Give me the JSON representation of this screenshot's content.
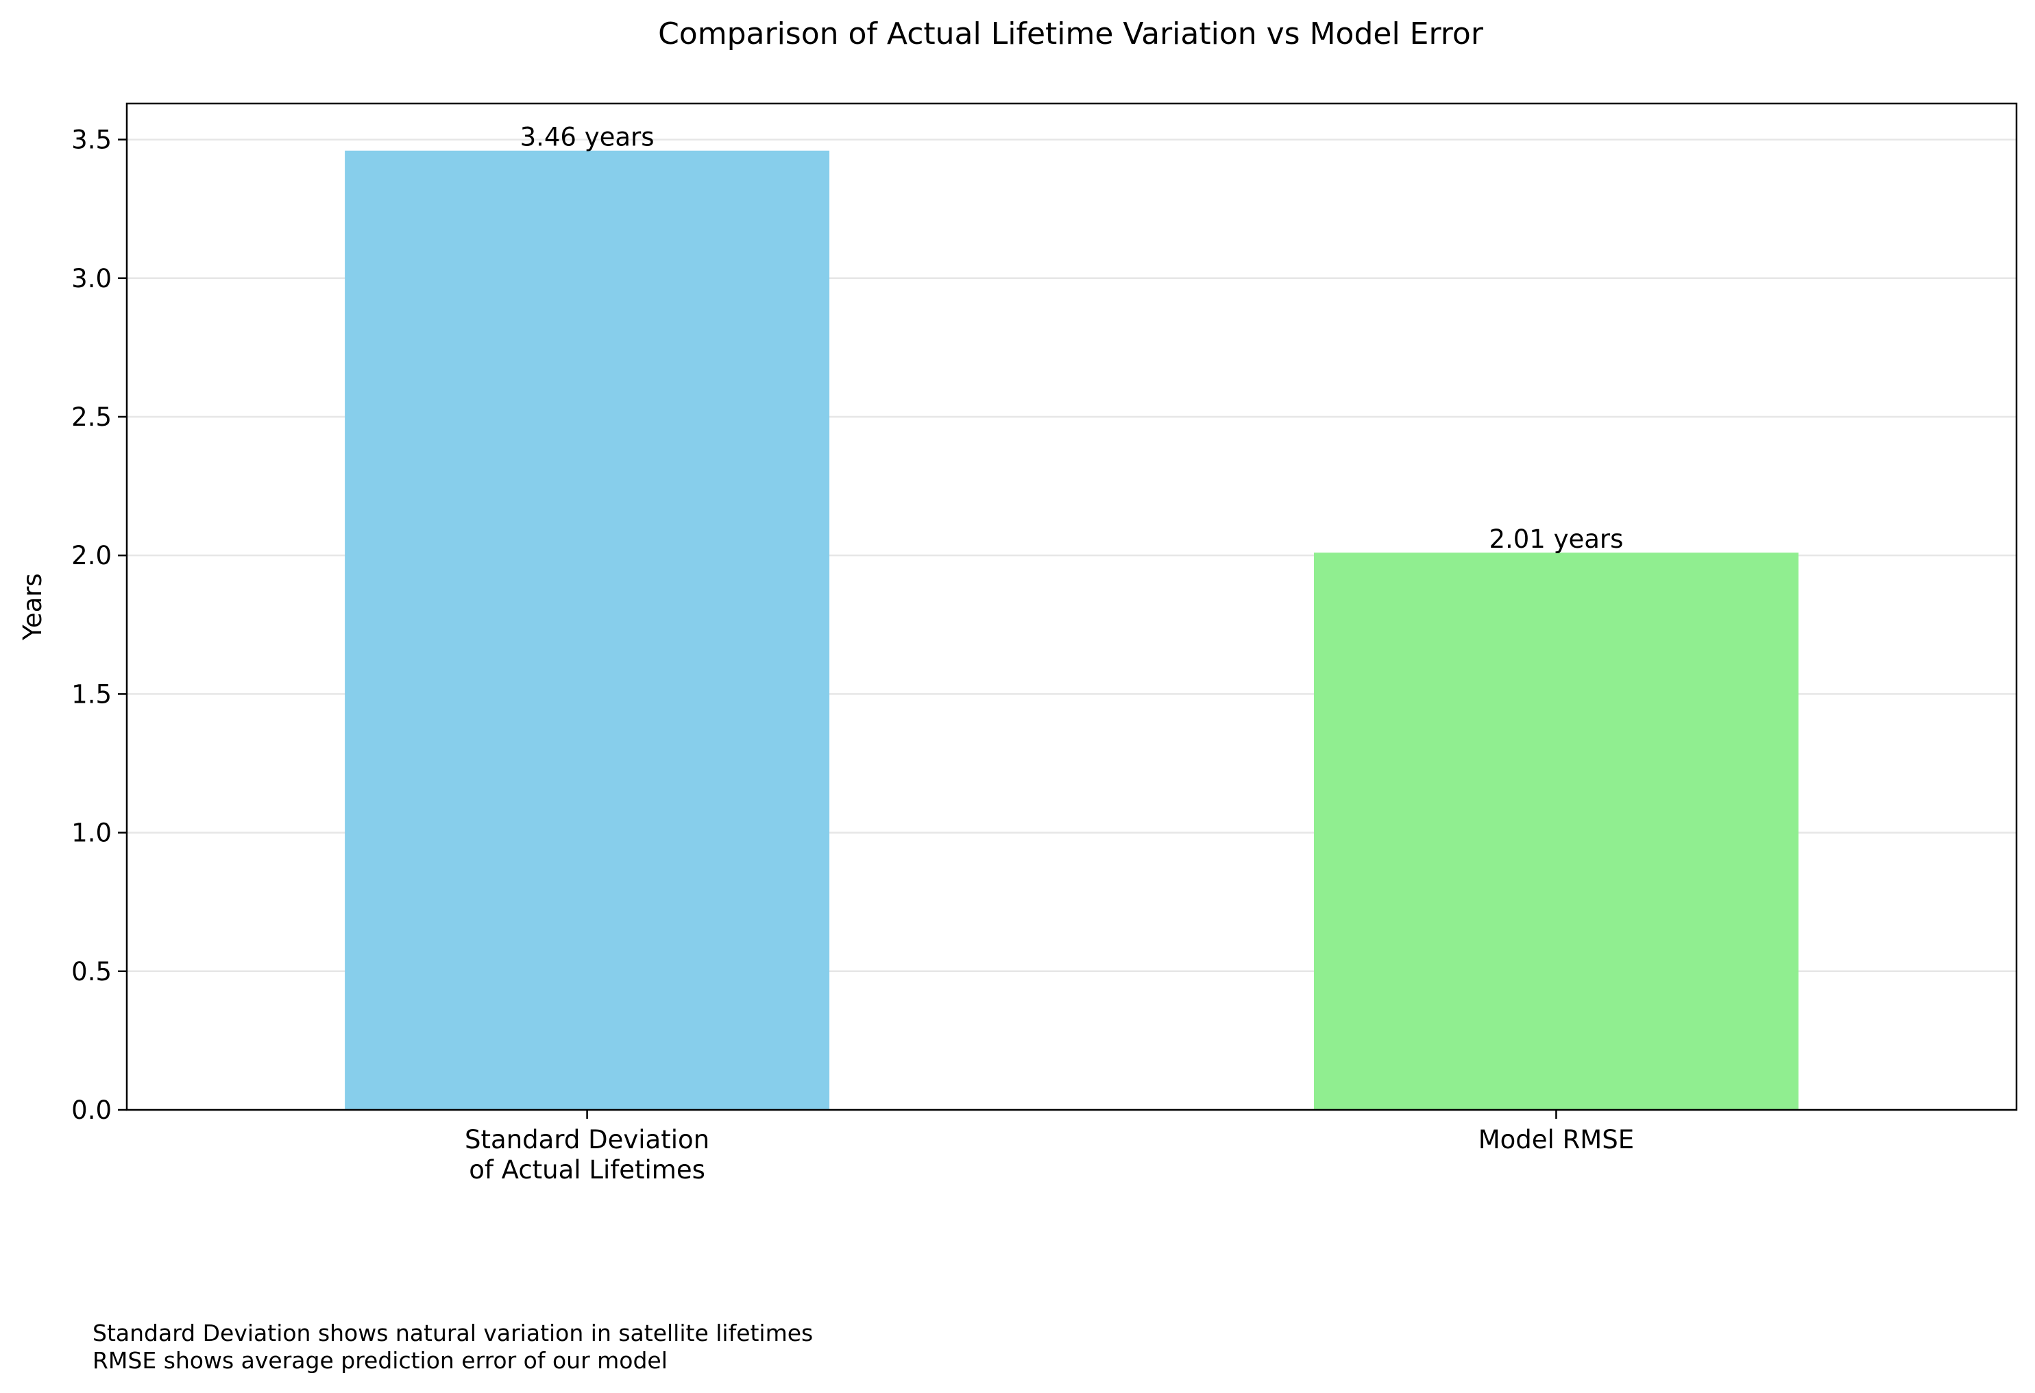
{
  "chart_data": {
    "type": "bar",
    "title": "Comparison of Actual Lifetime Variation vs Model Error",
    "xlabel": "",
    "ylabel": "Years",
    "categories": [
      [
        "Standard Deviation",
        "of Actual Lifetimes"
      ],
      [
        "Model RMSE"
      ]
    ],
    "values": [
      3.46,
      2.01
    ],
    "value_labels": [
      "3.46 years",
      "2.01 years"
    ],
    "colors": [
      "#87CEEB",
      "#90EE90"
    ],
    "ylim": [
      0,
      3.63
    ],
    "yticks": [
      0.0,
      0.5,
      1.0,
      1.5,
      2.0,
      2.5,
      3.0,
      3.5
    ],
    "ytick_labels": [
      "0.0",
      "0.5",
      "1.0",
      "1.5",
      "2.0",
      "2.5",
      "3.0",
      "3.5"
    ],
    "grid": "y",
    "annotations": [
      "Standard Deviation shows natural variation in satellite lifetimes",
      "RMSE shows average prediction error of our model"
    ]
  }
}
